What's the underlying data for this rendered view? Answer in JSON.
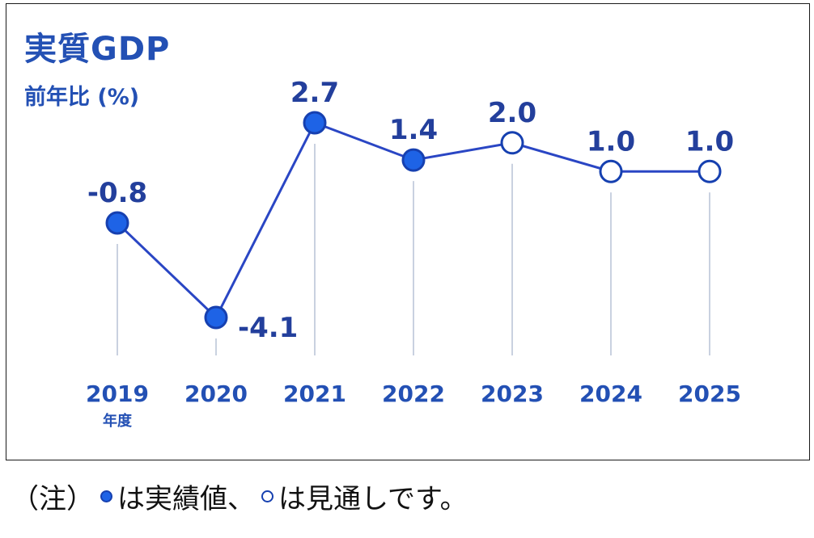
{
  "title": "実質GDP",
  "subtitle": "前年比 (%)",
  "unit_label": "年度",
  "note": {
    "prefix": "（注）",
    "actual_text": "は実績値、",
    "forecast_text": "は見通しです。"
  },
  "colors": {
    "line": "#2a46c4",
    "marker_fill_actual": "#1e63e6",
    "marker_stroke": "#1640b0",
    "gridline": "#b7c2d6",
    "text": "#2350b4"
  },
  "chart_data": {
    "type": "line",
    "title": "実質GDP",
    "ylabel": "前年比 (%)",
    "xlabel": "年度",
    "categories": [
      "2019",
      "2020",
      "2021",
      "2022",
      "2023",
      "2024",
      "2025"
    ],
    "series": [
      {
        "values": [
          -0.8,
          -4.1,
          2.7,
          1.4,
          2.0,
          1.0,
          1.0
        ],
        "labels": [
          "-0.8",
          "-4.1",
          "2.7",
          "1.4",
          "2.0",
          "1.0",
          "1.0"
        ],
        "status": [
          "actual",
          "actual",
          "actual",
          "actual",
          "forecast",
          "forecast",
          "forecast"
        ]
      }
    ],
    "ylim": [
      -4.1,
      2.7
    ],
    "grid": false,
    "legend": "below-chart"
  }
}
